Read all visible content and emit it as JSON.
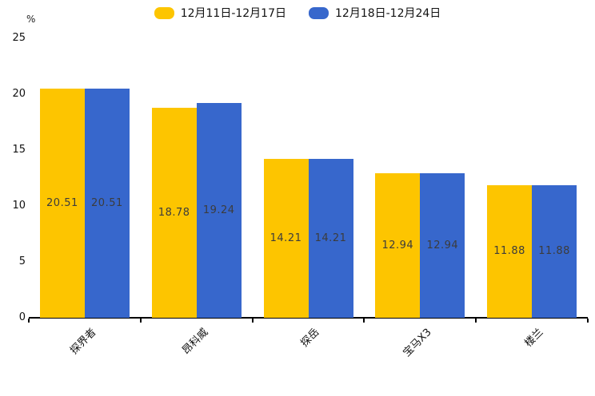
{
  "chart_data": {
    "type": "bar",
    "categories": [
      "探界者",
      "昂科威",
      "探岳",
      "宝马X3",
      "楼兰"
    ],
    "series": [
      {
        "name": "12月11日-12月17日",
        "color": "#FDC500",
        "values": [
          20.51,
          18.78,
          14.21,
          12.94,
          11.88
        ]
      },
      {
        "name": "12月18日-12月24日",
        "color": "#3767CC",
        "values": [
          20.51,
          19.24,
          14.21,
          12.94,
          11.88
        ]
      }
    ],
    "title": "",
    "xlabel": "",
    "ylabel": "%",
    "ylim": [
      0,
      25
    ],
    "yticks": [
      0,
      5,
      10,
      15,
      20,
      25
    ],
    "legend_position": "top-center",
    "grid": false,
    "bar_labels": "inside-middle",
    "value_label_color": "#3c3c3c",
    "axis_color": "#000000"
  }
}
